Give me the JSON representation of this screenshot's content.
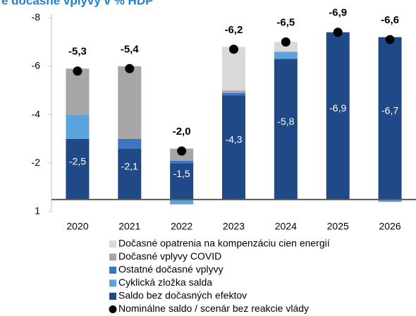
{
  "chart_data": {
    "type": "stacked-bar",
    "title": "é dočasné vplyvy v % HDP",
    "categories": [
      "2020",
      "2021",
      "2022",
      "2023",
      "2024",
      "2025",
      "2026"
    ],
    "series": [
      {
        "name": "Dočasné opatrenia na kompenzáciu cien energií",
        "color": "#d9d9d9",
        "values": [
          0,
          0,
          0,
          -1.8,
          -0.4,
          0,
          0
        ]
      },
      {
        "name": "Dočasné vplyvy COVID",
        "color": "#a6a6a6",
        "values": [
          -1.9,
          -3.0,
          -0.5,
          -0.1,
          0,
          0,
          0
        ]
      },
      {
        "name": "Ostatné dočasné vplyvy",
        "color": "#3f74c4",
        "values": [
          0,
          -0.4,
          -0.1,
          -0.1,
          0,
          0,
          0
        ]
      },
      {
        "name": "Cyklická zložka salda",
        "color": "#5ba3dc",
        "values": [
          -1.0,
          0,
          0.2,
          0,
          -0.3,
          0,
          0.1
        ]
      },
      {
        "name": "Saldo bez dočasných efektov",
        "color": "#1f4a87",
        "values": [
          -2.5,
          -2.1,
          -1.5,
          -4.3,
          -5.8,
          -6.9,
          -6.7
        ],
        "value_labels": [
          "-2,5",
          "-2,1",
          "-1,5",
          "-4,3",
          "-5,8",
          "-6,9",
          "-6,7"
        ]
      }
    ],
    "points": {
      "name": "Nominálne saldo / scenár bez reakcie vlády",
      "color": "#000000",
      "values": [
        -5.3,
        -5.4,
        -2.0,
        -6.2,
        -6.5,
        -6.9,
        -6.6
      ],
      "value_labels": [
        "-5,3",
        "-5,4",
        "-2,0",
        "-6,2",
        "-6,5",
        "-6,9",
        "-6,6"
      ]
    },
    "ylim": [
      0.5,
      -7.65
    ],
    "yticks": [
      {
        "value": -7.5,
        "label": "-8"
      },
      {
        "value": -5.5,
        "label": "-6"
      },
      {
        "value": -3.5,
        "label": "-4"
      },
      {
        "value": -1.5,
        "label": "-2"
      },
      {
        "value": 0.5,
        "label": "1"
      }
    ]
  }
}
